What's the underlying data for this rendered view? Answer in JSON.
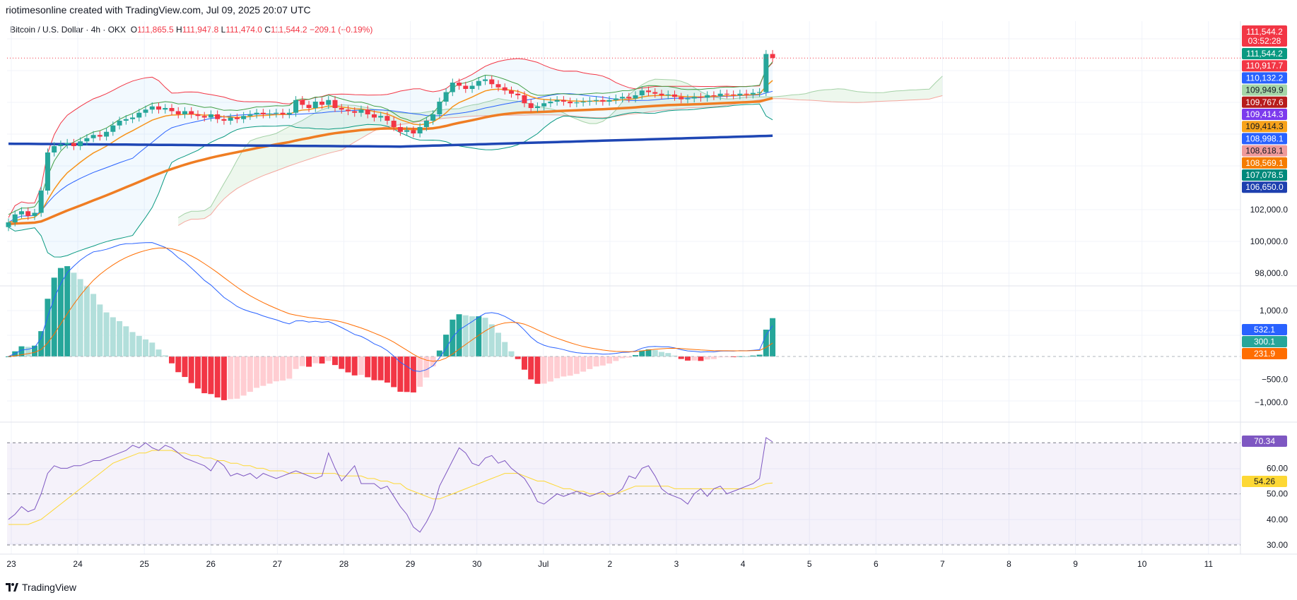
{
  "header": {
    "attribution": "riotimesonline created with TradingView.com, Jul 09, 2025 20:07 UTC"
  },
  "legend": {
    "symbol": "Bitcoin / U.S. Dollar · 4h · OKX",
    "open_label": "O",
    "open": "111,865.5",
    "high_label": "H",
    "high": "111,947.8",
    "low_label": "L",
    "low": "111,474.0",
    "close_label": "C",
    "close": "111,544.2",
    "change": "−209.1 (−0.19%)"
  },
  "footer": {
    "brand": "TradingView"
  },
  "colors": {
    "up": "#26a69a",
    "down": "#f23645",
    "up_light": "#b2dfdb",
    "down_light": "#ffcdd2",
    "ema_fast": "#f7931a",
    "ema_slow": "#ef7d23",
    "ma_blue": "#1e46b4",
    "bb": "#2962ff",
    "macd": "#2962ff",
    "signal": "#ff6d00",
    "rsi": "#7e57c2",
    "rsi_ma": "#fdd835"
  },
  "chart_data": [
    {
      "type": "candlestick",
      "title": "Bitcoin / U.S. Dollar · 4h · OKX",
      "x_tick_labels": [
        "23",
        "24",
        "25",
        "26",
        "27",
        "28",
        "29",
        "30",
        "Jul",
        "2",
        "3",
        "4",
        "5",
        "6",
        "7",
        "8",
        "9",
        "10",
        "11"
      ],
      "y_tick_labels": [
        "102,000.0",
        "100,000.0",
        "98,000.0"
      ],
      "price_labels": [
        {
          "text": "111,544.2",
          "sub": "03:52:28",
          "value": 111544.2,
          "color": "#f23645"
        },
        {
          "text": "111,544.2",
          "value": 111544.2,
          "color": "#089981"
        },
        {
          "text": "110,917.7",
          "value": 110917.7,
          "color": "#f23645"
        },
        {
          "text": "110,132.2",
          "value": 110132.2,
          "color": "#2962ff"
        },
        {
          "text": "109,949.9",
          "value": 109949.9,
          "color": "#a5d6a7",
          "dark_text": true
        },
        {
          "text": "109,767.6",
          "value": 109767.6,
          "color": "#b71c1c"
        },
        {
          "text": "109,414.3",
          "value": 109414.3,
          "color": "#7c3aed"
        },
        {
          "text": "109,414.3",
          "value": 109414.3,
          "color": "#f7a21b",
          "dark_text": true
        },
        {
          "text": "108,998.1",
          "value": 108998.1,
          "color": "#2962ff"
        },
        {
          "text": "108,618.1",
          "value": 108618.1,
          "color": "#ef9a9a",
          "dark_text": true
        },
        {
          "text": "108,569.1",
          "value": 108569.1,
          "color": "#f57c00"
        },
        {
          "text": "107,078.5",
          "value": 107078.5,
          "color": "#00897b"
        },
        {
          "text": "106,650.0",
          "value": 106650.0,
          "color": "#1e40af"
        }
      ],
      "closes": [
        101200,
        101700,
        101900,
        101600,
        101800,
        103200,
        105600,
        106000,
        106100,
        106200,
        106000,
        106300,
        106500,
        106700,
        106600,
        106900,
        107300,
        107600,
        107700,
        107800,
        108100,
        108300,
        108500,
        108300,
        108400,
        108200,
        108000,
        108200,
        108000,
        107900,
        107800,
        108000,
        107700,
        107600,
        107800,
        107700,
        107900,
        108000,
        108100,
        108000,
        108050,
        108100,
        108000,
        108100,
        108900,
        108600,
        108400,
        108800,
        108600,
        108900,
        108400,
        108300,
        108200,
        108100,
        108300,
        108000,
        107800,
        107900,
        107600,
        107200,
        106900,
        107000,
        106800,
        107200,
        107600,
        108000,
        108800,
        109400,
        110000,
        109800,
        109600,
        109800,
        110100,
        110200,
        109900,
        109700,
        109500,
        109300,
        109200,
        108700,
        108400,
        108500,
        108700,
        108800,
        108900,
        108800,
        108700,
        108750,
        108800,
        108850,
        108900,
        108800,
        108900,
        109000,
        109100,
        109000,
        109200,
        109500,
        109400,
        109300,
        109200,
        109250,
        109100,
        108950,
        109000,
        109100,
        109050,
        109200,
        109150,
        109300,
        109250,
        109200,
        109300,
        109250,
        109350,
        109400,
        111800,
        111544
      ]
    },
    {
      "type": "macd",
      "y_tick_labels": [
        "1,000.0",
        "−500.0",
        "−1,000.0"
      ],
      "value_labels": [
        {
          "text": "532.1",
          "value": 532.1,
          "color": "#2962ff"
        },
        {
          "text": "300.1",
          "value": 300.1,
          "color": "#26a69a"
        },
        {
          "text": "231.9",
          "value": 231.9,
          "color": "#ff6d00"
        }
      ]
    },
    {
      "type": "rsi",
      "y_tick_labels": [
        "60.00",
        "50.00",
        "40.00",
        "30.00"
      ],
      "levels": [
        70,
        50,
        30
      ],
      "ylim": [
        28,
        76
      ],
      "value_labels": [
        {
          "text": "70.34",
          "value": 70.34,
          "color": "#7e57c2"
        },
        {
          "text": "54.26",
          "value": 54.26,
          "color": "#fdd835",
          "dark_text": true
        }
      ],
      "rsi": [
        40,
        42,
        45,
        43,
        44,
        50,
        58,
        61,
        60,
        60,
        61,
        61,
        62,
        63,
        63,
        64,
        65,
        66,
        67,
        69,
        68,
        70,
        68,
        67,
        69,
        68,
        66,
        64,
        63,
        62,
        61,
        59,
        63,
        61,
        57,
        58,
        57,
        58,
        56,
        58,
        57,
        56,
        57,
        58,
        59,
        58,
        57,
        56,
        57,
        66,
        60,
        55,
        58,
        61,
        54,
        54,
        54,
        52,
        53,
        49,
        45,
        42,
        37,
        35,
        39,
        44,
        53,
        58,
        63,
        68,
        66,
        62,
        61,
        64,
        65,
        62,
        63,
        60,
        58,
        56,
        52,
        47,
        46,
        48,
        50,
        49,
        50,
        51,
        50,
        49,
        50,
        51,
        49,
        50,
        52,
        57,
        56,
        60,
        61,
        57,
        52,
        50,
        49,
        48,
        46,
        50,
        52,
        49,
        52,
        53,
        50,
        51,
        52,
        53,
        54,
        56,
        72,
        70.34
      ],
      "rsi_ma": [
        38,
        38,
        38,
        38,
        39,
        40,
        42,
        44,
        46,
        48,
        50,
        52,
        54,
        56,
        58,
        60,
        62,
        63,
        64,
        65,
        66,
        66,
        67,
        67,
        67,
        67,
        66,
        66,
        65,
        65,
        64,
        64,
        63,
        63,
        62,
        62,
        61,
        61,
        60,
        60,
        59,
        59,
        59,
        58,
        58,
        58,
        58,
        58,
        58,
        58,
        58,
        57,
        57,
        57,
        57,
        56,
        56,
        55,
        55,
        54,
        54,
        52,
        51,
        50,
        49,
        48,
        48,
        49,
        50,
        51,
        52,
        53,
        54,
        55,
        56,
        57,
        58,
        58,
        58,
        57,
        56,
        55,
        55,
        54,
        53,
        52,
        52,
        51,
        51,
        50,
        50,
        50,
        50,
        50,
        51,
        52,
        53,
        53,
        53,
        53,
        53,
        53,
        52,
        52,
        52,
        52,
        52,
        52,
        52,
        52,
        52,
        52,
        52,
        52,
        52,
        53,
        54,
        54.26
      ]
    }
  ]
}
